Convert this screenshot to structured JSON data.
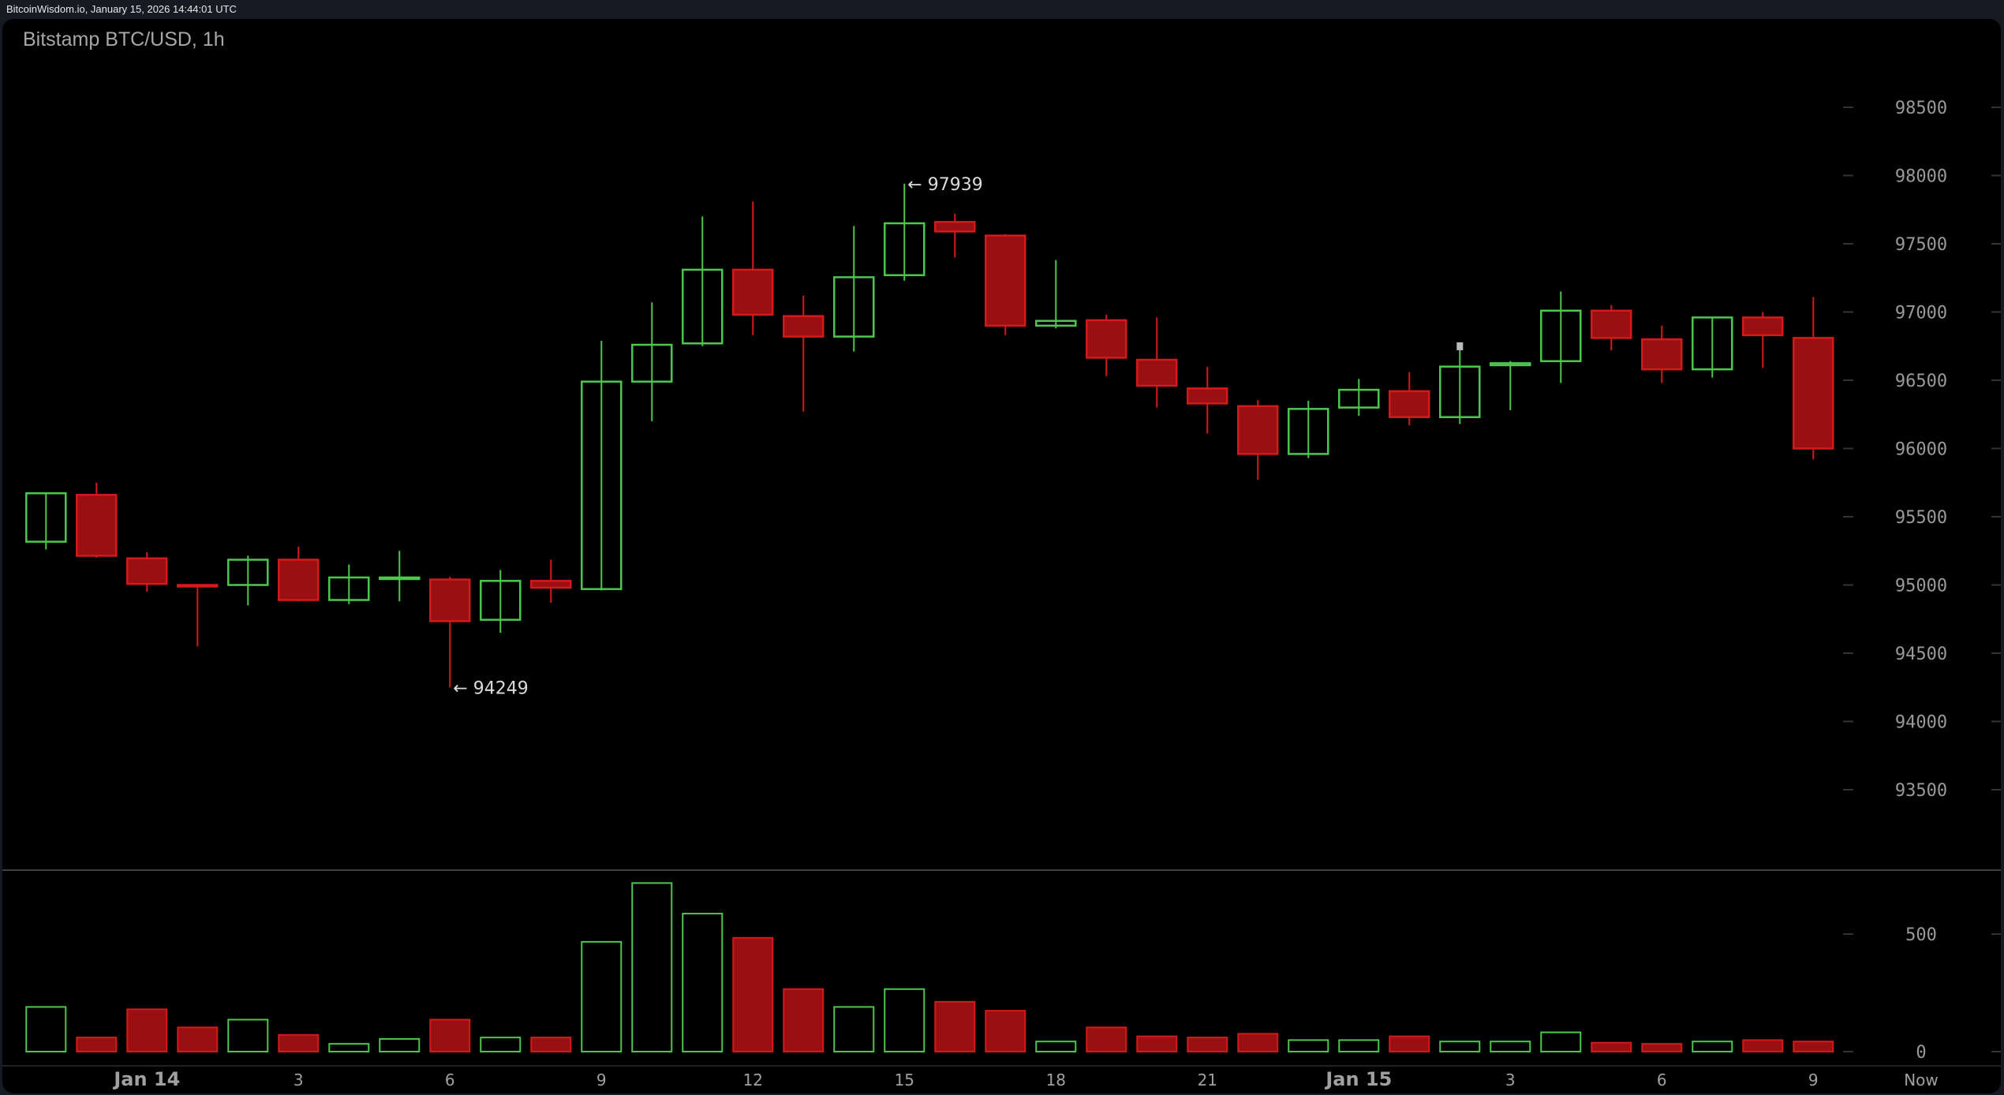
{
  "header": {
    "source": "BitcoinWisdom.io, January 15, 2026 14:44:01 UTC"
  },
  "chart_title": "Bitstamp BTC/USD, 1h",
  "colors": {
    "up": "#4cc84c",
    "down_fill": "#9a0f12",
    "down_stroke": "#d41a1a",
    "background": "#000000",
    "axis_text": "#9a9a9a"
  },
  "chart_data": [
    {
      "type": "candlestick",
      "title": "Bitstamp BTC/USD, 1h",
      "ylim": [
        93000,
        98800
      ],
      "y_ticks": [
        "98500",
        "98000",
        "97500",
        "97000",
        "96500",
        "96000",
        "95500",
        "95000",
        "94500",
        "94000",
        "93500"
      ],
      "x_ticks": [
        {
          "label": "Jan 14",
          "index": 2,
          "day": true
        },
        {
          "label": "3",
          "index": 5
        },
        {
          "label": "6",
          "index": 8
        },
        {
          "label": "9",
          "index": 11
        },
        {
          "label": "12",
          "index": 14
        },
        {
          "label": "15",
          "index": 17
        },
        {
          "label": "18",
          "index": 20
        },
        {
          "label": "21",
          "index": 23
        },
        {
          "label": "Jan 15",
          "index": 26,
          "day": true
        },
        {
          "label": "3",
          "index": 29
        },
        {
          "label": "6",
          "index": 32
        },
        {
          "label": "9",
          "index": 35
        }
      ],
      "now_label": "Now",
      "annotations": [
        {
          "text": "← 97939",
          "index": 17,
          "price": 97939
        },
        {
          "text": "← 94249",
          "index": 8,
          "price": 94249
        }
      ],
      "ohlc": [
        [
          95317,
          95680,
          95260,
          95672
        ],
        [
          95660,
          95750,
          95200,
          95214
        ],
        [
          95195,
          95240,
          94950,
          95008
        ],
        [
          95000,
          95000,
          94550,
          94995
        ],
        [
          95000,
          95215,
          94850,
          95185
        ],
        [
          95185,
          95280,
          94880,
          94890
        ],
        [
          94890,
          95150,
          94860,
          95055
        ],
        [
          95050,
          95250,
          94880,
          95055
        ],
        [
          95040,
          95060,
          94249,
          94735
        ],
        [
          94745,
          95110,
          94650,
          95030
        ],
        [
          95030,
          95185,
          94870,
          94980
        ],
        [
          94970,
          96790,
          94960,
          96490
        ],
        [
          96490,
          97070,
          96200,
          96760
        ],
        [
          96770,
          97700,
          96750,
          97310
        ],
        [
          97310,
          97810,
          96830,
          96980
        ],
        [
          96970,
          97120,
          96270,
          96820
        ],
        [
          96820,
          97630,
          96710,
          97255
        ],
        [
          97270,
          97939,
          97230,
          97650
        ],
        [
          97660,
          97720,
          97400,
          97590
        ],
        [
          97560,
          97570,
          96830,
          96900
        ],
        [
          96900,
          97380,
          96880,
          96935
        ],
        [
          96940,
          96980,
          96530,
          96665
        ],
        [
          96650,
          96960,
          96300,
          96460
        ],
        [
          96440,
          96600,
          96110,
          96330
        ],
        [
          96310,
          96355,
          95770,
          95960
        ],
        [
          95960,
          96350,
          95930,
          96290
        ],
        [
          96300,
          96510,
          96240,
          96430
        ],
        [
          96420,
          96560,
          96170,
          96230
        ],
        [
          96230,
          96720,
          96180,
          96600
        ],
        [
          96610,
          96640,
          96280,
          96625
        ],
        [
          96640,
          97150,
          96480,
          97010
        ],
        [
          97010,
          97050,
          96720,
          96810
        ],
        [
          96800,
          96900,
          96480,
          96580
        ],
        [
          96580,
          96960,
          96520,
          96960
        ],
        [
          96960,
          97000,
          96590,
          96830
        ],
        [
          96810,
          97110,
          95920,
          96000
        ]
      ]
    },
    {
      "type": "bar",
      "title": "",
      "ylim": [
        0,
        750
      ],
      "y_ticks": [
        "500",
        "0"
      ],
      "volume": [
        190,
        60,
        180,
        103,
        136,
        71,
        33,
        54,
        136,
        60,
        60,
        467,
        717,
        587,
        484,
        266,
        190,
        266,
        212,
        174,
        43,
        103,
        65,
        60,
        76,
        49,
        49,
        65,
        43,
        43,
        82,
        38,
        33,
        43,
        49,
        43
      ]
    }
  ]
}
